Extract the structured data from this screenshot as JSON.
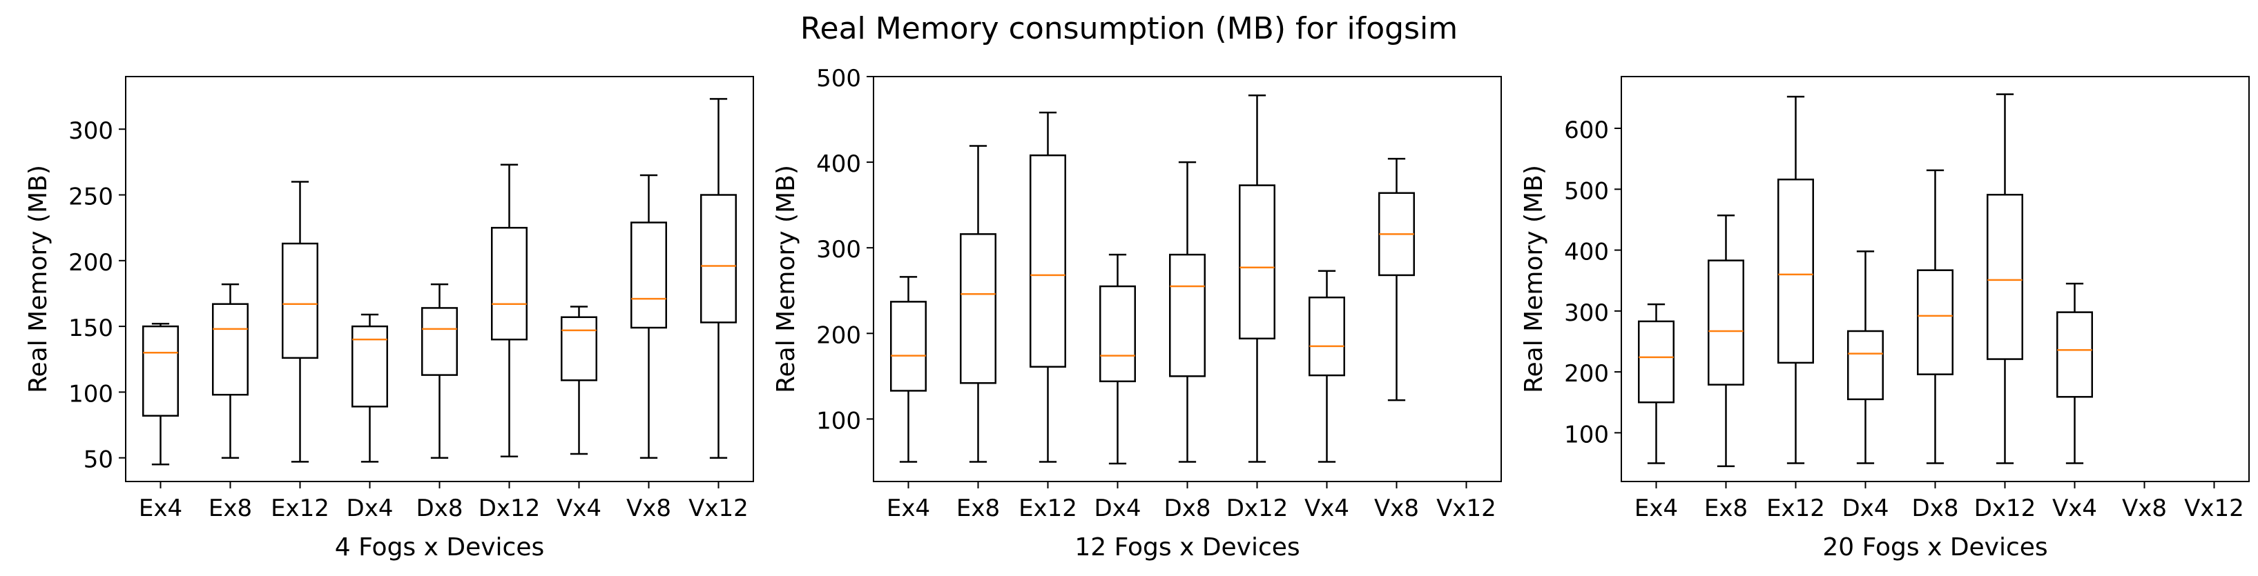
{
  "figure_title": "Real Memory consumption (MB) for ifogsim",
  "colors": {
    "box": "#000000",
    "median": "#ff7f0e",
    "background": "#ffffff"
  },
  "chart_data": [
    {
      "type": "boxplot",
      "title": "",
      "xlabel": "4 Fogs x Devices",
      "ylabel": "Real Memory (MB)",
      "ylim": [
        32,
        340
      ],
      "yticks": [
        50,
        100,
        150,
        200,
        250,
        300
      ],
      "categories": [
        "Ex4",
        "Ex8",
        "Ex12",
        "Dx4",
        "Dx8",
        "Dx12",
        "Vx4",
        "Vx8",
        "Vx12"
      ],
      "boxes": [
        {
          "whislo": 45,
          "q1": 82,
          "med": 130,
          "q3": 150,
          "whishi": 152
        },
        {
          "whislo": 50,
          "q1": 98,
          "med": 148,
          "q3": 167,
          "whishi": 182
        },
        {
          "whislo": 47,
          "q1": 126,
          "med": 167,
          "q3": 213,
          "whishi": 260
        },
        {
          "whislo": 47,
          "q1": 89,
          "med": 140,
          "q3": 150,
          "whishi": 159
        },
        {
          "whislo": 50,
          "q1": 113,
          "med": 148,
          "q3": 164,
          "whishi": 182
        },
        {
          "whislo": 51,
          "q1": 140,
          "med": 167,
          "q3": 225,
          "whishi": 273
        },
        {
          "whislo": 53,
          "q1": 109,
          "med": 147,
          "q3": 157,
          "whishi": 165
        },
        {
          "whislo": 50,
          "q1": 149,
          "med": 171,
          "q3": 229,
          "whishi": 265
        },
        {
          "whislo": 50,
          "q1": 153,
          "med": 196,
          "q3": 250,
          "whishi": 323
        }
      ]
    },
    {
      "type": "boxplot",
      "title": "",
      "xlabel": "12 Fogs x Devices",
      "ylabel": "Real Memory (MB)",
      "ylim": [
        27,
        500
      ],
      "yticks": [
        100,
        200,
        300,
        400,
        500
      ],
      "categories": [
        "Ex4",
        "Ex8",
        "Ex12",
        "Dx4",
        "Dx8",
        "Dx12",
        "Vx4",
        "Vx8",
        "Vx12"
      ],
      "boxes": [
        {
          "whislo": 50,
          "q1": 133,
          "med": 174,
          "q3": 237,
          "whishi": 266
        },
        {
          "whislo": 50,
          "q1": 142,
          "med": 246,
          "q3": 316,
          "whishi": 419
        },
        {
          "whislo": 50,
          "q1": 161,
          "med": 268,
          "q3": 408,
          "whishi": 458
        },
        {
          "whislo": 48,
          "q1": 144,
          "med": 174,
          "q3": 255,
          "whishi": 292
        },
        {
          "whislo": 50,
          "q1": 150,
          "med": 255,
          "q3": 292,
          "whishi": 400
        },
        {
          "whislo": 50,
          "q1": 194,
          "med": 277,
          "q3": 373,
          "whishi": 478
        },
        {
          "whislo": 50,
          "q1": 151,
          "med": 185,
          "q3": 242,
          "whishi": 273
        },
        {
          "whislo": 122,
          "q1": 268,
          "med": 316,
          "q3": 364,
          "whishi": 404
        },
        null
      ]
    },
    {
      "type": "boxplot",
      "title": "",
      "xlabel": "20 Fogs x Devices",
      "ylabel": "Real Memory (MB)",
      "ylim": [
        20,
        685
      ],
      "yticks": [
        100,
        200,
        300,
        400,
        500,
        600
      ],
      "categories": [
        "Ex4",
        "Ex8",
        "Ex12",
        "Dx4",
        "Dx8",
        "Dx12",
        "Vx4",
        "Vx8",
        "Vx12"
      ],
      "boxes": [
        {
          "whislo": 50,
          "q1": 150,
          "med": 224,
          "q3": 283,
          "whishi": 311
        },
        {
          "whislo": 45,
          "q1": 179,
          "med": 267,
          "q3": 383,
          "whishi": 457
        },
        {
          "whislo": 50,
          "q1": 215,
          "med": 360,
          "q3": 516,
          "whishi": 652
        },
        {
          "whislo": 50,
          "q1": 155,
          "med": 230,
          "q3": 267,
          "whishi": 398
        },
        {
          "whislo": 50,
          "q1": 196,
          "med": 292,
          "q3": 367,
          "whishi": 531
        },
        {
          "whislo": 50,
          "q1": 221,
          "med": 351,
          "q3": 491,
          "whishi": 656
        },
        {
          "whislo": 50,
          "q1": 159,
          "med": 236,
          "q3": 298,
          "whishi": 345
        },
        null,
        null
      ]
    }
  ]
}
